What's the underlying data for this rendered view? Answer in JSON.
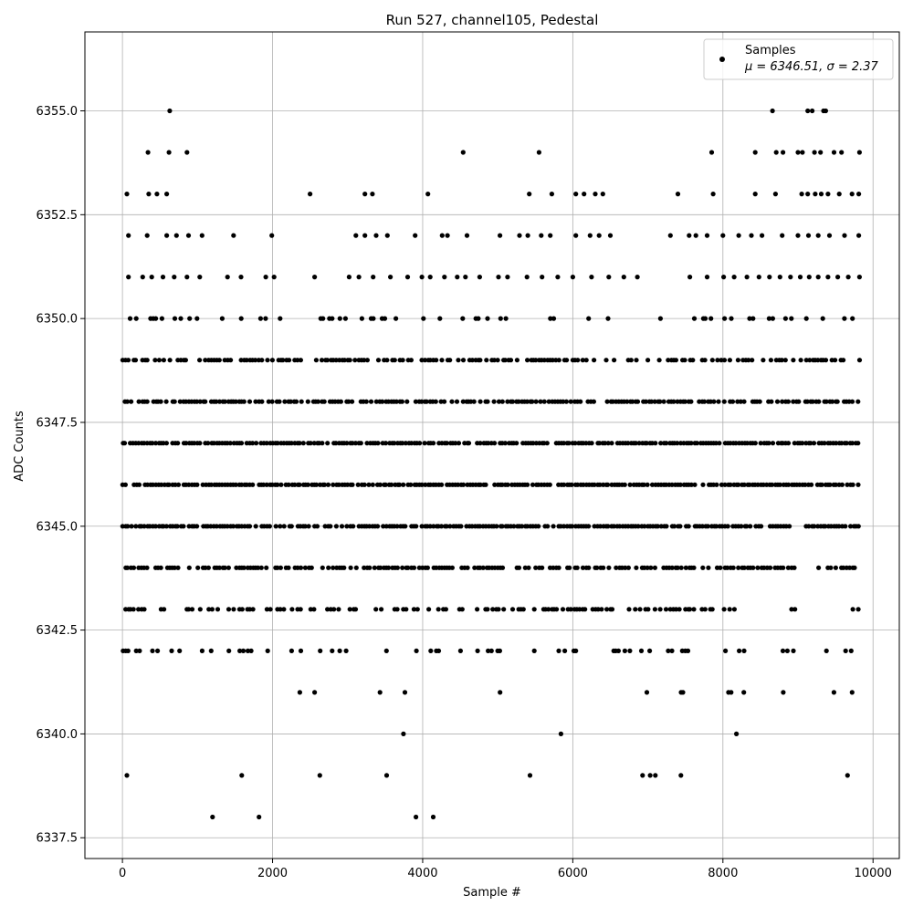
{
  "chart_data": {
    "type": "scatter",
    "title": "Run 527, channel105, Pedestal",
    "xlabel": "Sample #",
    "ylabel": "ADC Counts",
    "xlim": [
      -500,
      10350
    ],
    "ylim": [
      6337.0,
      6356.9
    ],
    "x_ticks": [
      0,
      2000,
      4000,
      6000,
      8000,
      10000
    ],
    "x_tick_labels": [
      "0",
      "2000",
      "4000",
      "6000",
      "8000",
      "10000"
    ],
    "y_ticks": [
      6337.5,
      6340.0,
      6342.5,
      6345.0,
      6347.5,
      6350.0,
      6352.5,
      6355.0
    ],
    "y_tick_labels": [
      "6337.5",
      "6340.0",
      "6342.5",
      "6345.0",
      "6347.5",
      "6350.0",
      "6352.5",
      "6355.0"
    ],
    "grid": true,
    "marker_color": "#000000",
    "legend": {
      "placement": "top-right",
      "label_line1": "Samples",
      "label_line2": "μ = 6346.51, σ = 2.37"
    },
    "series": [
      {
        "name": "Samples",
        "x_range": [
          0,
          9830
        ],
        "count": 9831,
        "points": [
          [
            630,
            6355
          ],
          [
            8660,
            6355
          ],
          [
            9130,
            6355
          ],
          [
            9190,
            6355
          ],
          [
            9340,
            6355
          ],
          [
            9370,
            6355
          ],
          [
            340,
            6354
          ],
          [
            620,
            6354
          ],
          [
            860,
            6354
          ],
          [
            4540,
            6354
          ],
          [
            5550,
            6354
          ],
          [
            7850,
            6354
          ],
          [
            8430,
            6354
          ],
          [
            8710,
            6354
          ],
          [
            8800,
            6354
          ],
          [
            9000,
            6354
          ],
          [
            9060,
            6354
          ],
          [
            9220,
            6354
          ],
          [
            9300,
            6354
          ],
          [
            9480,
            6354
          ],
          [
            9580,
            6354
          ],
          [
            9820,
            6354
          ],
          [
            60,
            6353
          ],
          [
            350,
            6353
          ],
          [
            460,
            6353
          ],
          [
            590,
            6353
          ],
          [
            2500,
            6353
          ],
          [
            3230,
            6353
          ],
          [
            3330,
            6353
          ],
          [
            4070,
            6353
          ],
          [
            5420,
            6353
          ],
          [
            5720,
            6353
          ],
          [
            6040,
            6353
          ],
          [
            6150,
            6353
          ],
          [
            6300,
            6353
          ],
          [
            6400,
            6353
          ],
          [
            7400,
            6353
          ],
          [
            7870,
            6353
          ],
          [
            8430,
            6353
          ],
          [
            8700,
            6353
          ],
          [
            9050,
            6353
          ],
          [
            9130,
            6353
          ],
          [
            9230,
            6353
          ],
          [
            9310,
            6353
          ],
          [
            9400,
            6353
          ],
          [
            9550,
            6353
          ],
          [
            9720,
            6353
          ],
          [
            9810,
            6353
          ],
          [
            80,
            6352
          ],
          [
            330,
            6352
          ],
          [
            590,
            6352
          ],
          [
            720,
            6352
          ],
          [
            880,
            6352
          ],
          [
            1060,
            6352
          ],
          [
            1480,
            6352
          ],
          [
            1990,
            6352
          ],
          [
            3110,
            6352
          ],
          [
            3230,
            6352
          ],
          [
            3380,
            6352
          ],
          [
            3530,
            6352
          ],
          [
            3900,
            6352
          ],
          [
            4260,
            6352
          ],
          [
            4330,
            6352
          ],
          [
            4590,
            6352
          ],
          [
            5030,
            6352
          ],
          [
            5290,
            6352
          ],
          [
            5400,
            6352
          ],
          [
            5580,
            6352
          ],
          [
            5700,
            6352
          ],
          [
            6040,
            6352
          ],
          [
            6230,
            6352
          ],
          [
            6350,
            6352
          ],
          [
            6500,
            6352
          ],
          [
            7300,
            6352
          ],
          [
            7550,
            6352
          ],
          [
            7640,
            6352
          ],
          [
            7790,
            6352
          ],
          [
            8000,
            6352
          ],
          [
            8210,
            6352
          ],
          [
            8380,
            6352
          ],
          [
            8520,
            6352
          ],
          [
            8790,
            6352
          ],
          [
            9000,
            6352
          ],
          [
            9140,
            6352
          ],
          [
            9270,
            6352
          ],
          [
            9420,
            6352
          ],
          [
            9620,
            6352
          ],
          [
            9810,
            6352
          ],
          [
            80,
            6351
          ],
          [
            270,
            6351
          ],
          [
            390,
            6351
          ],
          [
            540,
            6351
          ],
          [
            690,
            6351
          ],
          [
            860,
            6351
          ],
          [
            1030,
            6351
          ],
          [
            1400,
            6351
          ],
          [
            1580,
            6351
          ],
          [
            1910,
            6351
          ],
          [
            2020,
            6351
          ],
          [
            2560,
            6351
          ],
          [
            3020,
            6351
          ],
          [
            3150,
            6351
          ],
          [
            3340,
            6351
          ],
          [
            3570,
            6351
          ],
          [
            3800,
            6351
          ],
          [
            3990,
            6351
          ],
          [
            4100,
            6351
          ],
          [
            4290,
            6351
          ],
          [
            4460,
            6351
          ],
          [
            4570,
            6351
          ],
          [
            4760,
            6351
          ],
          [
            5010,
            6351
          ],
          [
            5130,
            6351
          ],
          [
            5390,
            6351
          ],
          [
            5590,
            6351
          ],
          [
            5800,
            6351
          ],
          [
            6000,
            6351
          ],
          [
            6250,
            6351
          ],
          [
            6480,
            6351
          ],
          [
            6680,
            6351
          ],
          [
            6860,
            6351
          ],
          [
            7560,
            6351
          ],
          [
            7790,
            6351
          ],
          [
            8010,
            6351
          ],
          [
            8150,
            6351
          ],
          [
            8320,
            6351
          ],
          [
            8480,
            6351
          ],
          [
            8620,
            6351
          ],
          [
            8760,
            6351
          ],
          [
            8900,
            6351
          ],
          [
            9030,
            6351
          ],
          [
            9150,
            6351
          ],
          [
            9270,
            6351
          ],
          [
            9400,
            6351
          ],
          [
            9530,
            6351
          ],
          [
            9670,
            6351
          ],
          [
            9820,
            6351
          ],
          [
            60,
            6339
          ],
          [
            1590,
            6339
          ],
          [
            2630,
            6339
          ],
          [
            3520,
            6339
          ],
          [
            5430,
            6339
          ],
          [
            6930,
            6339
          ],
          [
            7030,
            6339
          ],
          [
            7100,
            6339
          ],
          [
            7440,
            6339
          ],
          [
            9660,
            6339
          ],
          [
            1200,
            6338
          ],
          [
            1820,
            6338
          ],
          [
            3910,
            6338
          ],
          [
            4140,
            6338
          ]
        ],
        "dense_bands": [
          {
            "y": 6350,
            "x_ranges": [
              [
                0,
                1400
              ],
              [
                1540,
                2260
              ],
              [
                2420,
                3030
              ],
              [
                3120,
                4860
              ],
              [
                4960,
                6650
              ],
              [
                6790,
                7170
              ],
              [
                7250,
                7350
              ],
              [
                7400,
                9830
              ]
            ],
            "density": 0.22
          },
          {
            "y": 6349,
            "x_ranges": [
              [
                0,
                7060
              ],
              [
                7160,
                9830
              ]
            ],
            "density": 0.62
          },
          {
            "y": 6348,
            "x_ranges": [
              [
                0,
                1850
              ],
              [
                1950,
                9830
              ]
            ],
            "density": 0.82
          },
          {
            "y": 6347,
            "x_ranges": [
              [
                0,
                9830
              ]
            ],
            "density": 0.9
          },
          {
            "y": 6346,
            "x_ranges": [
              [
                0,
                9830
              ]
            ],
            "density": 0.9
          },
          {
            "y": 6345,
            "x_ranges": [
              [
                0,
                8920
              ],
              [
                9110,
                9830
              ]
            ],
            "density": 0.86
          },
          {
            "y": 6344,
            "x_ranges": [
              [
                0,
                8960
              ],
              [
                9280,
                9830
              ]
            ],
            "density": 0.72
          },
          {
            "y": 6343,
            "x_ranges": [
              [
                0,
                300
              ],
              [
                520,
                3960
              ],
              [
                4090,
                8230
              ],
              [
                8500,
                8520
              ],
              [
                8920,
                8960
              ],
              [
                9420,
                9440
              ],
              [
                9650,
                9830
              ]
            ],
            "density": 0.55
          },
          {
            "y": 6342,
            "x_ranges": [
              [
                0,
                240
              ],
              [
                400,
                1180
              ],
              [
                1380,
                2030
              ],
              [
                2220,
                2540
              ],
              [
                2640,
                3160
              ],
              [
                3490,
                3620
              ],
              [
                3880,
                4540
              ],
              [
                4730,
                5230
              ],
              [
                5380,
                5550
              ],
              [
                5820,
                6220
              ],
              [
                6540,
                7590
              ],
              [
                8030,
                8350
              ],
              [
                8790,
                8970
              ],
              [
                9380,
                9830
              ]
            ],
            "density": 0.28
          },
          {
            "y": 6341,
            "x_ranges": [
              [
                0,
                2600
              ],
              [
                2700,
                9830
              ]
            ],
            "density": 0.035
          },
          {
            "y": 6340,
            "x_ranges": [
              [
                0,
                9830
              ]
            ],
            "density": 0.02
          }
        ]
      }
    ]
  }
}
